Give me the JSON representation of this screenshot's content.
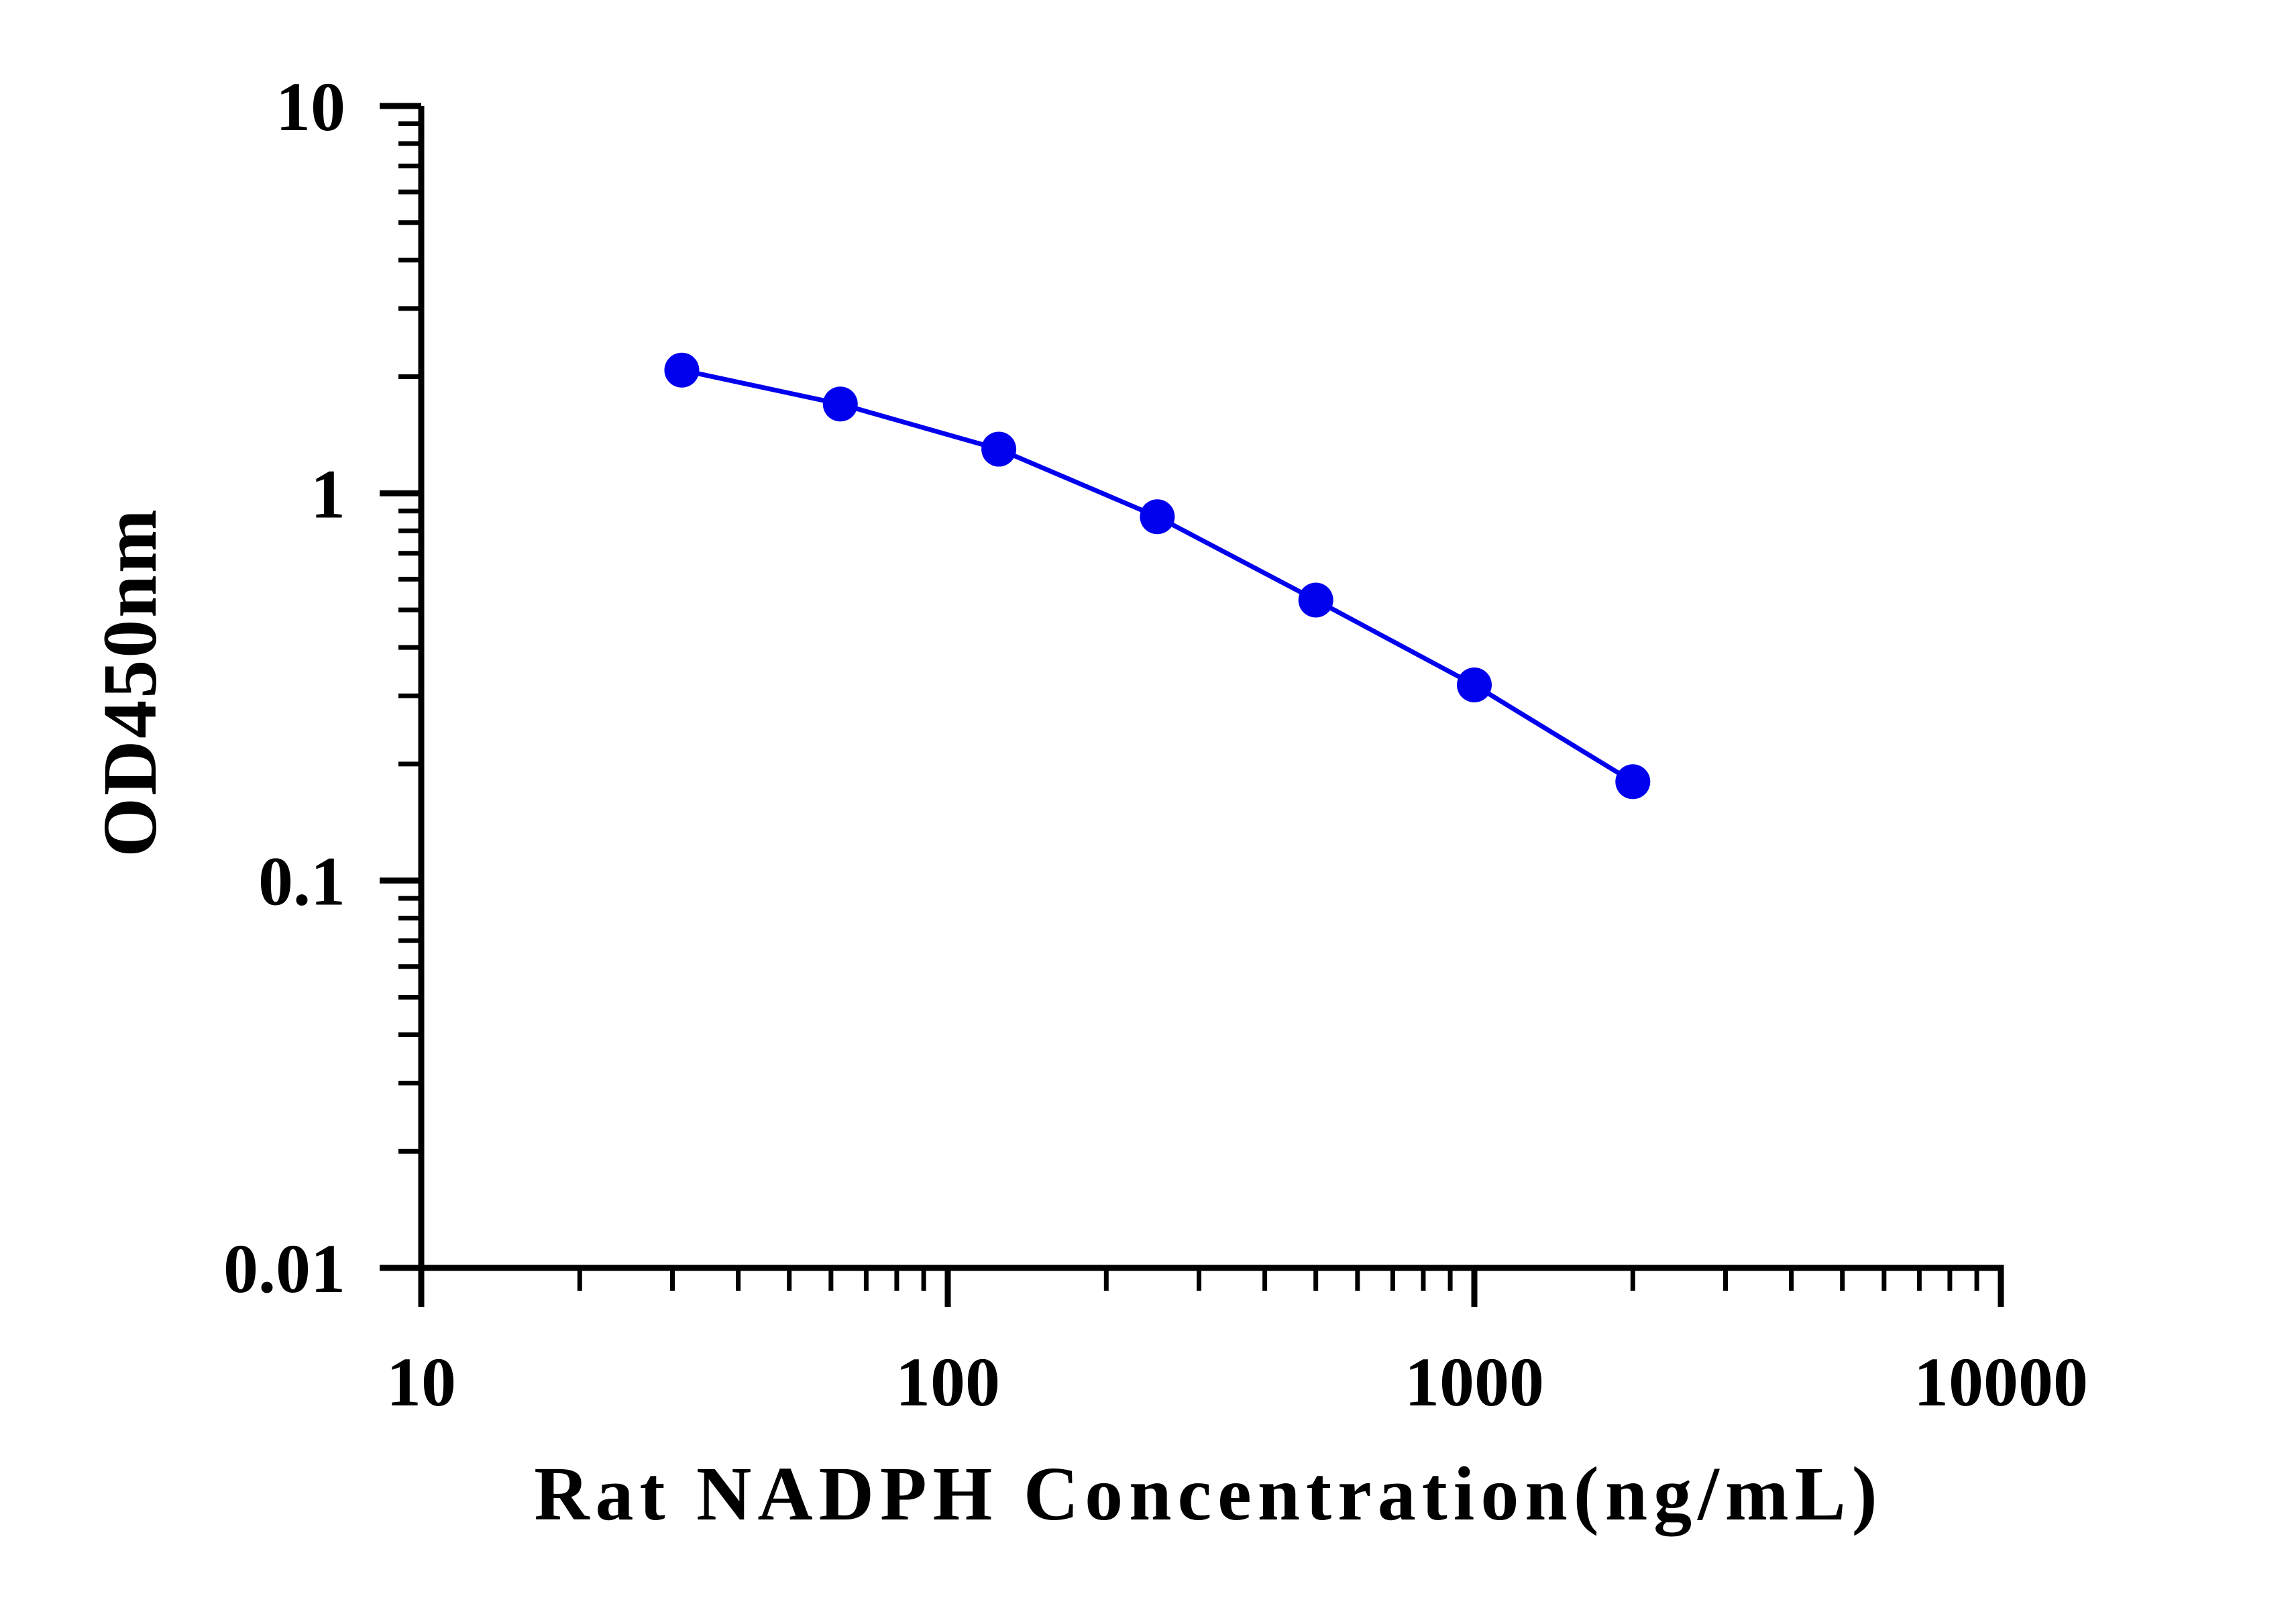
{
  "chart_data": {
    "type": "line",
    "title": "",
    "xlabel": "Rat NADPH Concentration(ng/mL)",
    "ylabel": "OD450nm",
    "x_scale": "log",
    "y_scale": "log",
    "xlim": [
      10,
      10000
    ],
    "ylim": [
      0.01,
      10
    ],
    "x_ticks": [
      10,
      100,
      1000,
      10000
    ],
    "x_tick_labels": [
      "10",
      "100",
      "1000",
      "10000"
    ],
    "y_ticks": [
      0.01,
      0.1,
      1,
      10
    ],
    "y_tick_labels": [
      "0.01",
      "0.1",
      "1",
      "10"
    ],
    "grid": false,
    "legend": "none",
    "color": "#0000ee",
    "series": [
      {
        "x": [
          31.25,
          62.5,
          125,
          250,
          500,
          1000,
          2000
        ],
        "y": [
          2.08,
          1.7,
          1.3,
          0.87,
          0.53,
          0.32,
          0.18
        ]
      }
    ]
  }
}
